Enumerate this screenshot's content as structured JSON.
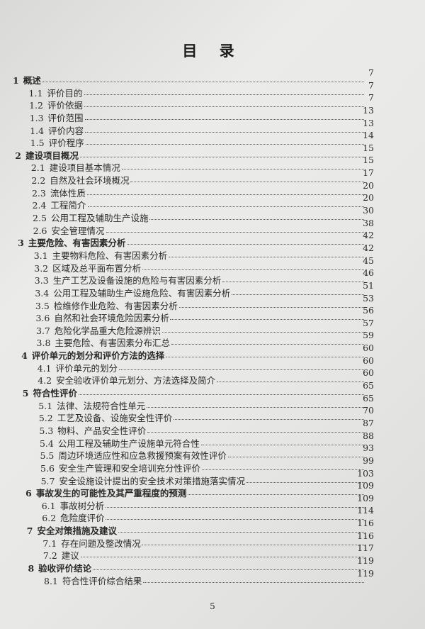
{
  "title": "目 录",
  "page_number": "5",
  "entries": [
    {
      "num": "1",
      "text": "概述",
      "page": "7",
      "level": 1
    },
    {
      "num": "1.1",
      "text": "评价目的",
      "page": "7",
      "level": 2
    },
    {
      "num": "1.2",
      "text": "评价依据",
      "page": "7",
      "level": 2
    },
    {
      "num": "1.3",
      "text": "评价范围",
      "page": "13",
      "level": 2
    },
    {
      "num": "1.4",
      "text": "评价内容",
      "page": "13",
      "level": 2
    },
    {
      "num": "1.5",
      "text": "评价程序",
      "page": "14",
      "level": 2
    },
    {
      "num": "2",
      "text": "建设项目概况",
      "page": "15",
      "level": 1
    },
    {
      "num": "2.1",
      "text": "建设项目基本情况",
      "page": "15",
      "level": 2
    },
    {
      "num": "2.2",
      "text": "自然及社会环境概况",
      "page": "17",
      "level": 2
    },
    {
      "num": "2.3",
      "text": "流体性质",
      "page": "20",
      "level": 2
    },
    {
      "num": "2.4",
      "text": "工程简介",
      "page": "20",
      "level": 2
    },
    {
      "num": "2.5",
      "text": "公用工程及辅助生产设施",
      "page": "30",
      "level": 2
    },
    {
      "num": "2.6",
      "text": "安全管理情况",
      "page": "38",
      "level": 2
    },
    {
      "num": "3",
      "text": "主要危险、有害因素分析",
      "page": "42",
      "level": 1
    },
    {
      "num": "3.1",
      "text": "主要物料危险、有害因素分析",
      "page": "42",
      "level": 2
    },
    {
      "num": "3.2",
      "text": "区域及总平面布置分析",
      "page": "45",
      "level": 2
    },
    {
      "num": "3.3",
      "text": "生产工艺及设备设施的危险与有害因素分析",
      "page": "46",
      "level": 2
    },
    {
      "num": "3.4",
      "text": "公用工程及辅助生产设施危险、有害因素分析",
      "page": "51",
      "level": 2
    },
    {
      "num": "3.5",
      "text": "检维修作业危险、有害因素分析",
      "page": "53",
      "level": 2
    },
    {
      "num": "3.6",
      "text": "自然和社会环境危险因素分析",
      "page": "56",
      "level": 2
    },
    {
      "num": "3.7",
      "text": "危险化学品重大危险源辨识",
      "page": "57",
      "level": 2
    },
    {
      "num": "3.8",
      "text": "主要危险、有害因素分布汇总",
      "page": "59",
      "level": 2
    },
    {
      "num": "4",
      "text": "评价单元的划分和评价方法的选择",
      "page": "60",
      "level": 1
    },
    {
      "num": "4.1",
      "text": "评价单元的划分",
      "page": "60",
      "level": 2
    },
    {
      "num": "4.2",
      "text": "安全验收评价单元划分、方法选择及简介",
      "page": "60",
      "level": 2
    },
    {
      "num": "5",
      "text": "符合性评价",
      "page": "65",
      "level": 1
    },
    {
      "num": "5.1",
      "text": "法律、法规符合性单元",
      "page": "65",
      "level": 2
    },
    {
      "num": "5.2",
      "text": "工艺及设备、设施安全性评价",
      "page": "70",
      "level": 2
    },
    {
      "num": "5.3",
      "text": "物料、产品安全性评价",
      "page": "87",
      "level": 2
    },
    {
      "num": "5.4",
      "text": "公用工程及辅助生产设施单元符合性",
      "page": "88",
      "level": 2
    },
    {
      "num": "5.5",
      "text": "周边环境适应性和应急救援预案有效性评价",
      "page": "93",
      "level": 2
    },
    {
      "num": "5.6",
      "text": "安全生产管理和安全培训充分性评价",
      "page": "99",
      "level": 2
    },
    {
      "num": "5.7",
      "text": "安全设施设计提出的安全技术对策措施落实情况",
      "page": "103",
      "level": 2
    },
    {
      "num": "6",
      "text": "事故发生的可能性及其严重程度的预测",
      "page": "109",
      "level": 1
    },
    {
      "num": "6.1",
      "text": "事故树分析",
      "page": "109",
      "level": 2
    },
    {
      "num": "6.2",
      "text": "危险度评价",
      "page": "114",
      "level": 2
    },
    {
      "num": "7",
      "text": "安全对策措施及建议",
      "page": "116",
      "level": 1
    },
    {
      "num": "7.1",
      "text": "存在问题及整改情况",
      "page": "116",
      "level": 2
    },
    {
      "num": "7.2",
      "text": "建议",
      "page": "117",
      "level": 2
    },
    {
      "num": "8",
      "text": "验收评价结论",
      "page": "119",
      "level": 1
    },
    {
      "num": "8.1",
      "text": "符合性评价综合结果",
      "page": "119",
      "level": 2
    }
  ]
}
